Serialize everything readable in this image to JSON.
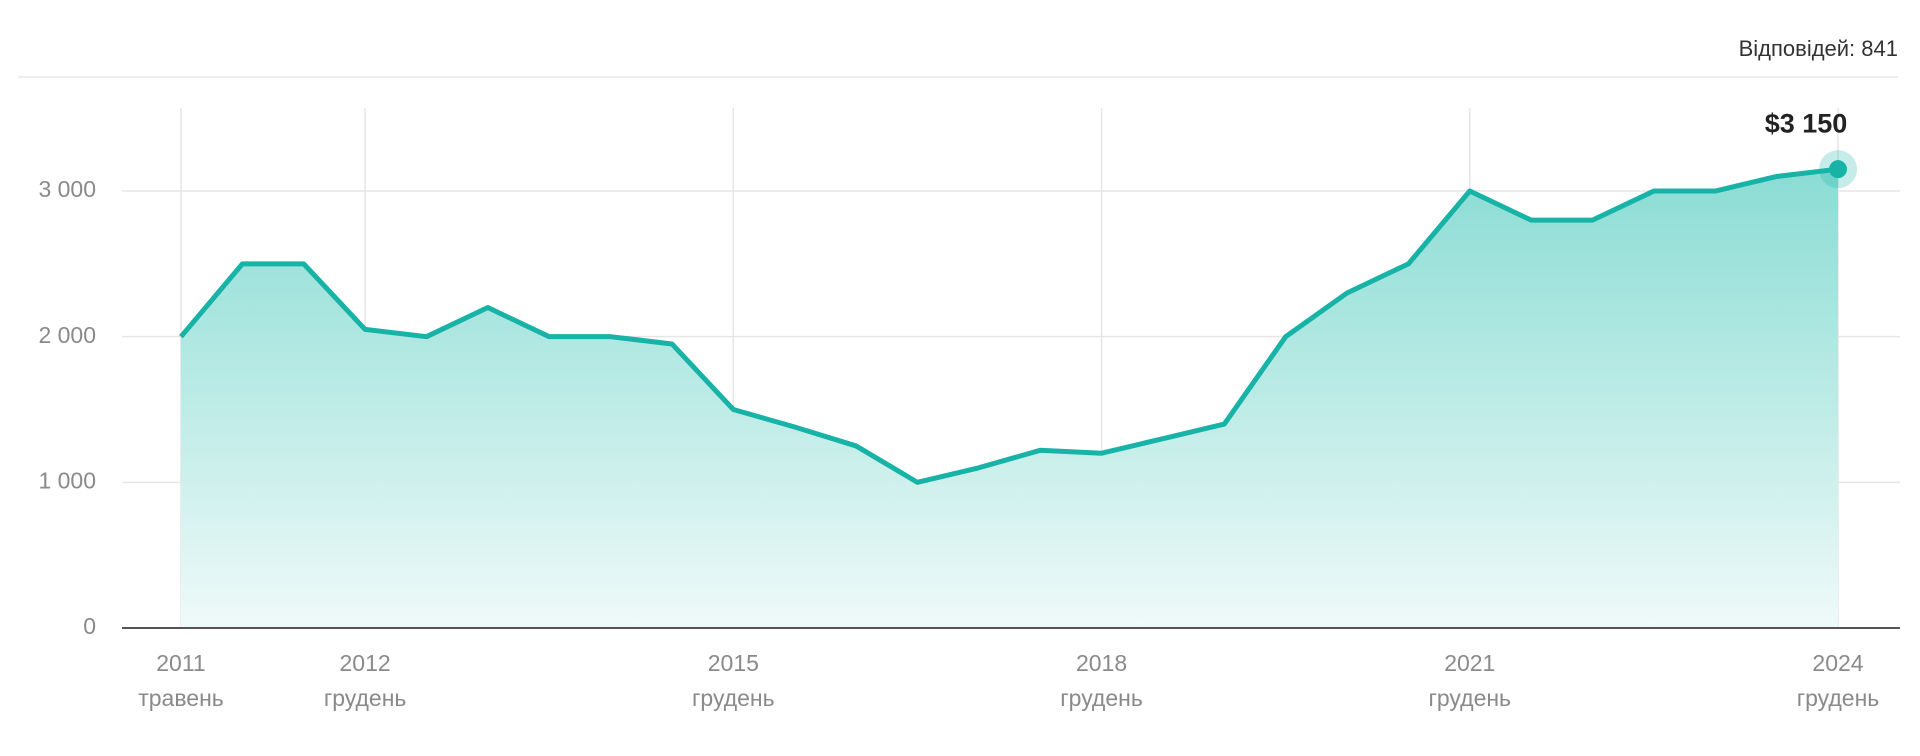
{
  "chart_data": {
    "type": "area",
    "responses_label": "Відповідей: 841",
    "categories": [
      "2011",
      null,
      null,
      "2012",
      null,
      null,
      null,
      null,
      null,
      "2015",
      null,
      null,
      null,
      null,
      null,
      "2018",
      null,
      null,
      null,
      null,
      null,
      "2021",
      null,
      null,
      null,
      null,
      null,
      "2024"
    ],
    "sublabels": [
      "травень",
      null,
      null,
      "грудень",
      null,
      null,
      null,
      null,
      null,
      "грудень",
      null,
      null,
      null,
      null,
      null,
      "грудень",
      null,
      null,
      null,
      null,
      null,
      "грудень",
      null,
      null,
      null,
      null,
      null,
      "грудень"
    ],
    "values": [
      2000,
      2500,
      2500,
      2050,
      2000,
      2200,
      2000,
      2000,
      1950,
      1500,
      1380,
      1250,
      1000,
      1100,
      1220,
      1200,
      1300,
      1400,
      2000,
      2300,
      2500,
      3000,
      2800,
      2800,
      3000,
      3000,
      3100,
      3150
    ],
    "value_labels": [
      null,
      null,
      null,
      null,
      null,
      null,
      null,
      null,
      null,
      null,
      null,
      null,
      null,
      null,
      null,
      null,
      null,
      null,
      null,
      null,
      null,
      null,
      null,
      null,
      null,
      null,
      null,
      "$3 150"
    ],
    "color": "#17b3a6",
    "ylim": [
      0,
      3570
    ],
    "yticks": [
      0,
      {
        "value": 1000,
        "label": "1 000"
      },
      {
        "value": 2000,
        "label": "2 000"
      },
      {
        "value": 3000,
        "label": "3 000"
      }
    ],
    "grid": true
  }
}
